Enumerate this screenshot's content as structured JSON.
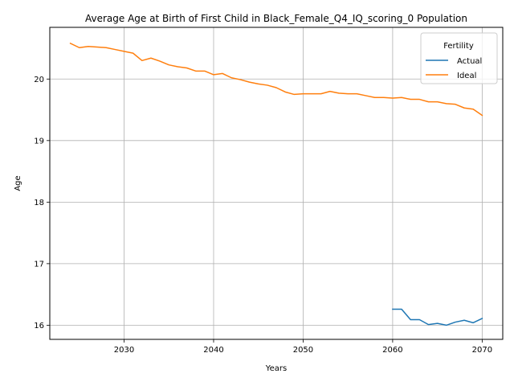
{
  "chart_data": {
    "type": "line",
    "title": "Average Age at Birth of First Child in Black_Female_Q4_IQ_scoring_0 Population",
    "xlabel": "Years",
    "ylabel": "Age",
    "xlim": [
      2021.7,
      2072.3
    ],
    "ylim": [
      15.77,
      20.84
    ],
    "xticks": [
      2030,
      2040,
      2050,
      2060,
      2070
    ],
    "yticks": [
      16,
      17,
      18,
      19,
      20
    ],
    "grid": true,
    "legend": {
      "title": "Fertility",
      "placement": "top-right"
    },
    "series": [
      {
        "name": "Actual",
        "color": "#1f77b4",
        "x": [
          2060,
          2061,
          2062,
          2063,
          2064,
          2065,
          2066,
          2067,
          2068,
          2069,
          2070
        ],
        "y": [
          16.26,
          16.26,
          16.09,
          16.09,
          16.01,
          16.03,
          16.0,
          16.05,
          16.08,
          16.04,
          16.11
        ]
      },
      {
        "name": "Ideal",
        "color": "#ff7f0e",
        "x": [
          2024,
          2025,
          2026,
          2027,
          2028,
          2029,
          2030,
          2031,
          2032,
          2033,
          2034,
          2035,
          2036,
          2037,
          2038,
          2039,
          2040,
          2041,
          2042,
          2043,
          2044,
          2045,
          2046,
          2047,
          2048,
          2049,
          2050,
          2051,
          2052,
          2053,
          2054,
          2055,
          2056,
          2057,
          2058,
          2059,
          2060,
          2061,
          2062,
          2063,
          2064,
          2065,
          2066,
          2067,
          2068,
          2069,
          2070
        ],
        "y": [
          20.58,
          20.51,
          20.53,
          20.52,
          20.51,
          20.48,
          20.45,
          20.42,
          20.3,
          20.34,
          20.29,
          20.23,
          20.2,
          20.18,
          20.13,
          20.13,
          20.07,
          20.09,
          20.02,
          19.99,
          19.95,
          19.92,
          19.9,
          19.86,
          19.79,
          19.75,
          19.76,
          19.76,
          19.76,
          19.8,
          19.77,
          19.76,
          19.76,
          19.73,
          19.7,
          19.7,
          19.69,
          19.7,
          19.67,
          19.67,
          19.63,
          19.63,
          19.6,
          19.59,
          19.53,
          19.51,
          19.41
        ]
      }
    ]
  }
}
